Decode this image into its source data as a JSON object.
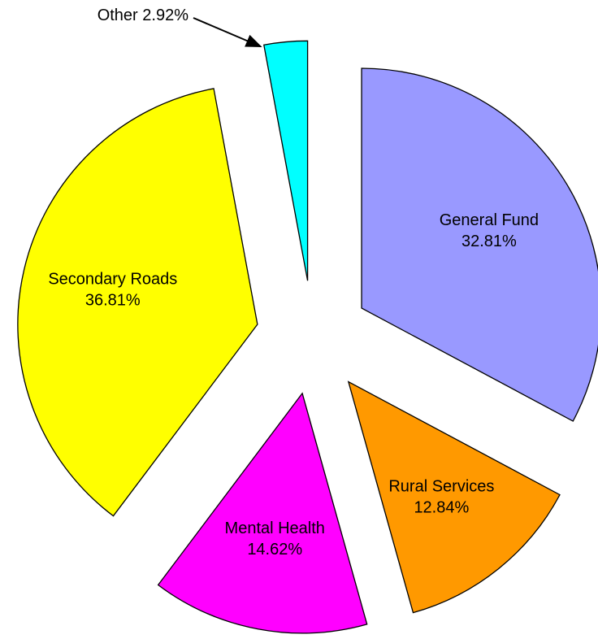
{
  "chart_data": {
    "type": "pie",
    "exploded": true,
    "categories": [
      "General Fund",
      "Rural Services",
      "Mental Health",
      "Secondary Roads",
      "Other"
    ],
    "values": [
      32.81,
      12.84,
      14.62,
      36.81,
      2.92
    ],
    "value_labels": [
      "32.81%",
      "12.84%",
      "14.62%",
      "36.81%",
      "2.92%"
    ],
    "colors": [
      "#9999ff",
      "#ff9900",
      "#ff00ff",
      "#ffff00",
      "#00ffff"
    ]
  }
}
